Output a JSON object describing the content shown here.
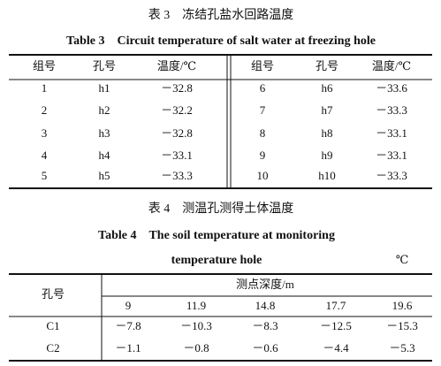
{
  "table3": {
    "caption_cn": "表 3　冻结孔盐水回路温度",
    "caption_en": "Table 3　Circuit temperature of salt water at freezing hole",
    "header": [
      "组号",
      "孔号",
      "温度/℃",
      "组号",
      "孔号",
      "温度/℃"
    ],
    "rows": [
      [
        "1",
        "h1",
        "－32.8",
        "6",
        "h6",
        "－33.6"
      ],
      [
        "2",
        "h2",
        "－32.2",
        "7",
        "h7",
        "－33.3"
      ],
      [
        "3",
        "h3",
        "－32.8",
        "8",
        "h8",
        "－33.1"
      ],
      [
        "4",
        "h4",
        "－33.1",
        "9",
        "h9",
        "－33.1"
      ],
      [
        "5",
        "h5",
        "－33.3",
        "10",
        "h10",
        "－33.3"
      ]
    ]
  },
  "table4": {
    "caption_cn": "表 4　测温孔测得土体温度",
    "caption_en": [
      "Table 4　The soil temperature at monitoring",
      "temperature hole"
    ],
    "unit": "℃",
    "row_header": "孔号",
    "group_header": "测点深度/m",
    "depths": [
      "9",
      "11.9",
      "14.8",
      "17.7",
      "19.6"
    ],
    "rows": [
      [
        "C1",
        "－7.8",
        "－10.3",
        "－8.3",
        "－12.5",
        "－15.3"
      ],
      [
        "C2",
        "－1.1",
        "－0.8",
        "－0.6",
        "－4.4",
        "－5.3"
      ]
    ]
  }
}
